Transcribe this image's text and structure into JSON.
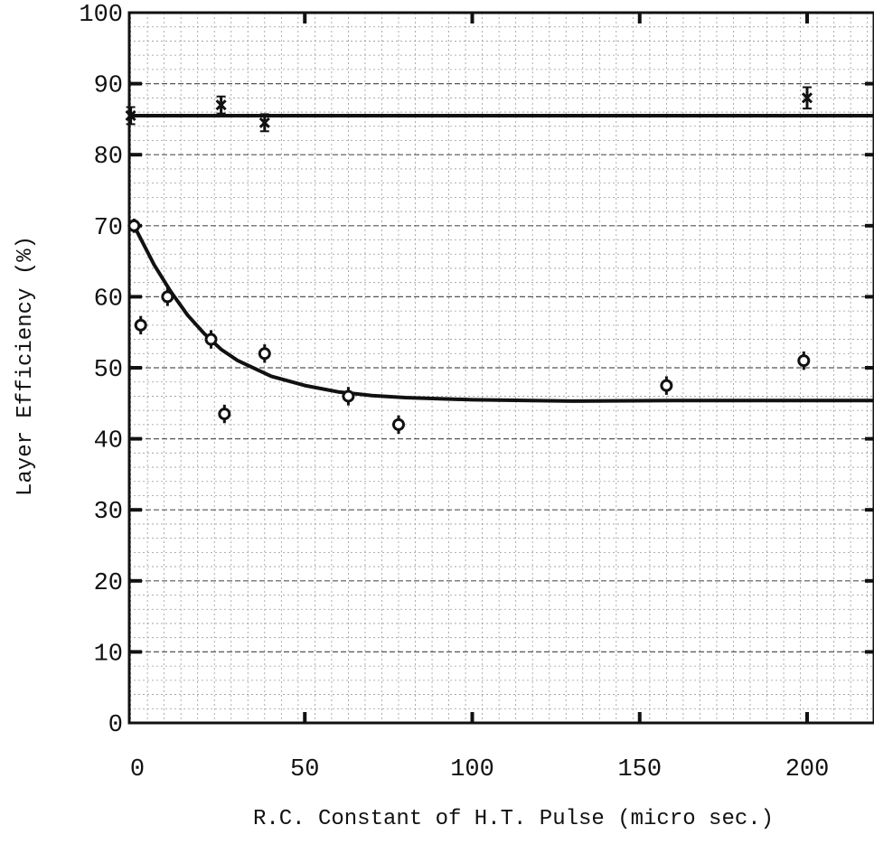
{
  "chart_data": {
    "type": "scatter",
    "xlabel": "R.C. Constant of H.T. Pulse (micro sec.)",
    "ylabel": "Layer Efficiency (%)",
    "xlim": [
      -2,
      220
    ],
    "ylim": [
      0,
      100
    ],
    "x_ticks": [
      0,
      50,
      100,
      150,
      200
    ],
    "y_ticks": [
      0,
      10,
      20,
      30,
      40,
      50,
      60,
      70,
      80,
      90,
      100
    ],
    "grid": true,
    "series": [
      {
        "marker": "cross",
        "points": [
          {
            "x": -2,
            "y": 85.5,
            "err": 1.2
          },
          {
            "x": 25,
            "y": 87,
            "err": 1.2
          },
          {
            "x": 38,
            "y": 84.5,
            "err": 1.2
          },
          {
            "x": 200,
            "y": 88,
            "err": 1.5
          }
        ]
      },
      {
        "marker": "circle",
        "points": [
          {
            "x": -1,
            "y": 70,
            "err": 1.0
          },
          {
            "x": 1,
            "y": 56,
            "err": 1.3
          },
          {
            "x": 9,
            "y": 60,
            "err": 1.3
          },
          {
            "x": 22,
            "y": 54,
            "err": 1.3
          },
          {
            "x": 26,
            "y": 43.5,
            "err": 1.3
          },
          {
            "x": 38,
            "y": 52,
            "err": 1.3
          },
          {
            "x": 63,
            "y": 46,
            "err": 1.3
          },
          {
            "x": 78,
            "y": 42,
            "err": 1.3
          },
          {
            "x": 158,
            "y": 47.5,
            "err": 1.3
          },
          {
            "x": 199,
            "y": 51,
            "err": 1.3
          }
        ]
      }
    ],
    "fit_lines": [
      {
        "points": [
          [
            -2,
            85.5
          ],
          [
            220,
            85.5
          ]
        ]
      },
      {
        "points": [
          [
            -1,
            70
          ],
          [
            5,
            64.5
          ],
          [
            10,
            60.7
          ],
          [
            15,
            57.4
          ],
          [
            20,
            54.8
          ],
          [
            25,
            52.6
          ],
          [
            30,
            51
          ],
          [
            40,
            48.8
          ],
          [
            50,
            47.5
          ],
          [
            60,
            46.6
          ],
          [
            70,
            46.1
          ],
          [
            80,
            45.8
          ],
          [
            100,
            45.5
          ],
          [
            130,
            45.3
          ],
          [
            160,
            45.4
          ],
          [
            220,
            45.4
          ]
        ]
      }
    ]
  }
}
